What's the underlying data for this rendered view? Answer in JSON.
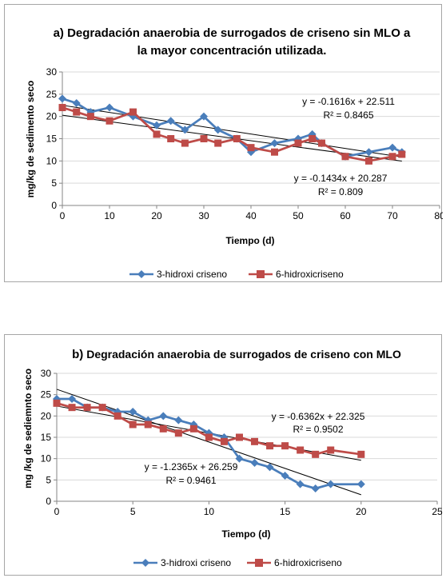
{
  "chart_data": [
    {
      "type": "line",
      "title": "a) Degradación anaerobia de surrogados de criseno sin MLO a la mayor concentración utilizada.",
      "title_lines": [
        "a) Degradación anaerobia de surrogados de criseno sin MLO a",
        "la mayor concentración utilizada."
      ],
      "xlabel": "Tiempo (d)",
      "ylabel": "mg/kg de sedimento seco",
      "xlim": [
        0,
        80
      ],
      "ylim": [
        0,
        30
      ],
      "xticks": [
        0,
        10,
        20,
        30,
        40,
        50,
        60,
        70,
        80
      ],
      "yticks": [
        0,
        5,
        10,
        15,
        20,
        25,
        30
      ],
      "grid": "horizontal",
      "legend_position": "bottom",
      "series": [
        {
          "name": "3-hidroxi criseno",
          "color": "#4a7ebb",
          "marker": "diamond",
          "points": [
            [
              0,
              24
            ],
            [
              3,
              23
            ],
            [
              6,
              21
            ],
            [
              10,
              22
            ],
            [
              15,
              20
            ],
            [
              20,
              18
            ],
            [
              23,
              19
            ],
            [
              26,
              17
            ],
            [
              30,
              20
            ],
            [
              33,
              17
            ],
            [
              37,
              15
            ],
            [
              40,
              12
            ],
            [
              45,
              14
            ],
            [
              50,
              15
            ],
            [
              53,
              16
            ],
            [
              55,
              14
            ],
            [
              60,
              11
            ],
            [
              65,
              12
            ],
            [
              70,
              13
            ],
            [
              72,
              12
            ]
          ],
          "trendline": {
            "slope": -0.1616,
            "intercept": 22.511,
            "x_range": [
              0,
              72
            ]
          }
        },
        {
          "name": "6-hidroxicriseno",
          "color": "#be4b48",
          "marker": "square",
          "points": [
            [
              0,
              22
            ],
            [
              3,
              21
            ],
            [
              6,
              20
            ],
            [
              10,
              19
            ],
            [
              15,
              21
            ],
            [
              20,
              16
            ],
            [
              23,
              15
            ],
            [
              26,
              14
            ],
            [
              30,
              15
            ],
            [
              33,
              14
            ],
            [
              37,
              15
            ],
            [
              40,
              13
            ],
            [
              45,
              12
            ],
            [
              50,
              14
            ],
            [
              53,
              15
            ],
            [
              55,
              14
            ],
            [
              60,
              11
            ],
            [
              65,
              10
            ],
            [
              70,
              11
            ],
            [
              72,
              11.5
            ]
          ],
          "trendline": {
            "slope": -0.1434,
            "intercept": 20.287,
            "x_range": [
              0,
              72
            ]
          }
        }
      ],
      "annotations": [
        "y = -0.1616x + 22.511",
        "R² = 0.8465",
        "y = -0.1434x + 20.287",
        "R² = 0.809"
      ]
    },
    {
      "type": "line",
      "title": "b) Degradación anaerobia de surrogados de criseno con MLO",
      "title_prefix": "b)",
      "title_rest": " Degradación anaerobia de surrogados de criseno con MLO",
      "xlabel": "Tiempo (d)",
      "ylabel": "mg /kg de sediemnto seco",
      "xlim": [
        0,
        25
      ],
      "ylim": [
        0,
        30
      ],
      "xticks": [
        0,
        5,
        10,
        15,
        20,
        25
      ],
      "yticks": [
        0,
        5,
        10,
        15,
        20,
        25,
        30
      ],
      "grid": "horizontal",
      "legend_position": "bottom",
      "series": [
        {
          "name": "3-hidroxi criseno",
          "color": "#4a7ebb",
          "marker": "diamond",
          "points": [
            [
              0,
              24
            ],
            [
              1,
              24
            ],
            [
              2,
              22
            ],
            [
              3,
              22
            ],
            [
              4,
              21
            ],
            [
              5,
              21
            ],
            [
              6,
              19
            ],
            [
              7,
              20
            ],
            [
              8,
              19
            ],
            [
              9,
              18
            ],
            [
              10,
              16
            ],
            [
              11,
              15
            ],
            [
              12,
              10
            ],
            [
              13,
              9
            ],
            [
              14,
              8
            ],
            [
              15,
              6
            ],
            [
              16,
              4
            ],
            [
              17,
              3
            ],
            [
              18,
              4
            ],
            [
              20,
              4
            ]
          ],
          "trendline": {
            "slope": -1.2365,
            "intercept": 26.259,
            "x_range": [
              0,
              20
            ]
          }
        },
        {
          "name": "6-hidroxicriseno",
          "color": "#be4b48",
          "marker": "square",
          "points": [
            [
              0,
              23
            ],
            [
              1,
              22
            ],
            [
              2,
              22
            ],
            [
              3,
              22
            ],
            [
              4,
              20
            ],
            [
              5,
              18
            ],
            [
              6,
              18
            ],
            [
              7,
              17
            ],
            [
              8,
              16
            ],
            [
              9,
              17
            ],
            [
              10,
              15
            ],
            [
              11,
              14
            ],
            [
              12,
              15
            ],
            [
              13,
              14
            ],
            [
              14,
              13
            ],
            [
              15,
              13
            ],
            [
              16,
              12
            ],
            [
              17,
              11
            ],
            [
              18,
              12
            ],
            [
              20,
              11
            ]
          ],
          "trendline": {
            "slope": -0.6362,
            "intercept": 22.325,
            "x_range": [
              0,
              20
            ]
          }
        }
      ],
      "annotations": [
        "y = -0.6362x + 22.325",
        "R² = 0.9502",
        "y = -1.2365x + 26.259",
        "R² = 0.9461"
      ]
    }
  ]
}
